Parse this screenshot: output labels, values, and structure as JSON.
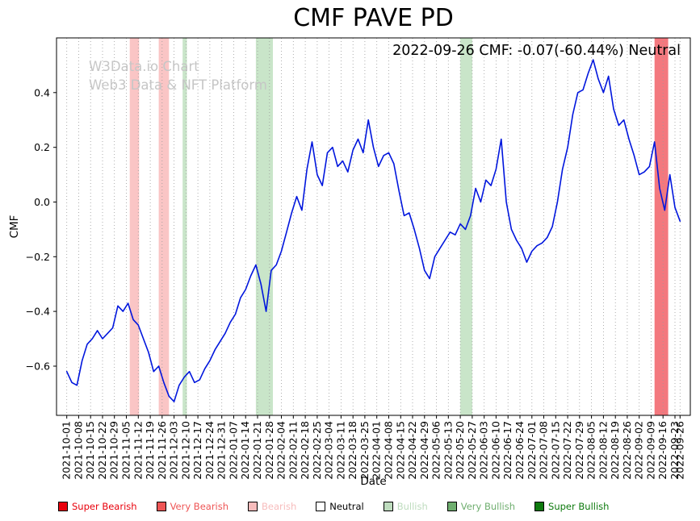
{
  "annotation": {
    "text": "2022-09-26 CMF: -0.07(-60.44%) Neutral"
  },
  "watermark": {
    "line1": "W3Data.io Chart",
    "line2": "Web3 Data & NFT Platform"
  },
  "legend": {
    "items": [
      {
        "label": "Super Bearish",
        "color": "#e8000b",
        "text_color": "#e8000b"
      },
      {
        "label": "Very Bearish",
        "color": "#ee5555",
        "text_color": "#ee5555"
      },
      {
        "label": "Bearish",
        "color": "#f7bcbc",
        "text_color": "#f7bcbc"
      },
      {
        "label": "Neutral",
        "color": "#ffffff",
        "text_color": "#000000"
      },
      {
        "label": "Bullish",
        "color": "#bedcbe",
        "text_color": "#bedcbe"
      },
      {
        "label": "Very Bullish",
        "color": "#6fae6f",
        "text_color": "#6fae6f"
      },
      {
        "label": "Super Bullish",
        "color": "#0e7a0e",
        "text_color": "#0e7a0e"
      }
    ]
  },
  "chart_data": {
    "type": "line",
    "title": "CMF PAVE PD",
    "xlabel": "Date",
    "ylabel": "CMF",
    "x_unit": "days since 2021-10-01",
    "xlim": [
      -6,
      366
    ],
    "ylim": [
      -0.78,
      0.6
    ],
    "grid": "vertical-dotted",
    "grid_color": "#9a9a9a",
    "yticks": [
      0.4,
      0.2,
      0.0,
      -0.2,
      -0.4,
      -0.6
    ],
    "tick_days": [
      0,
      7,
      14,
      21,
      28,
      35,
      42,
      49,
      56,
      63,
      70,
      77,
      84,
      91,
      98,
      105,
      112,
      119,
      126,
      133,
      140,
      147,
      154,
      161,
      168,
      175,
      182,
      189,
      196,
      203,
      210,
      217,
      224,
      231,
      238,
      245,
      252,
      259,
      266,
      273,
      280,
      287,
      294,
      301,
      308,
      315,
      322,
      329,
      336,
      343,
      350,
      357,
      360
    ],
    "tick_labels": [
      "2021-10-01",
      "2021-10-08",
      "2021-10-15",
      "2021-10-22",
      "2021-10-29",
      "2021-11-05",
      "2021-11-12",
      "2021-11-19",
      "2021-11-26",
      "2021-12-03",
      "2021-12-10",
      "2021-12-17",
      "2021-12-24",
      "2021-12-31",
      "2022-01-07",
      "2022-01-14",
      "2022-01-21",
      "2022-01-28",
      "2022-02-04",
      "2022-02-11",
      "2022-02-18",
      "2022-02-25",
      "2022-03-04",
      "2022-03-11",
      "2022-03-18",
      "2022-03-25",
      "2022-04-01",
      "2022-04-08",
      "2022-04-15",
      "2022-04-22",
      "2022-04-29",
      "2022-05-06",
      "2022-05-13",
      "2022-05-20",
      "2022-05-27",
      "2022-06-03",
      "2022-06-10",
      "2022-06-17",
      "2022-06-24",
      "2022-07-01",
      "2022-07-08",
      "2022-07-15",
      "2022-07-22",
      "2022-07-29",
      "2022-08-05",
      "2022-08-12",
      "2022-08-19",
      "2022-08-26",
      "2022-09-02",
      "2022-09-09",
      "2022-09-16",
      "2022-09-23",
      "2022-09-26"
    ],
    "series": [
      {
        "name": "CMF",
        "color": "#0016dd",
        "x0": 0,
        "dx": 3,
        "y": [
          -0.62,
          -0.66,
          -0.67,
          -0.58,
          -0.52,
          -0.5,
          -0.47,
          -0.5,
          -0.48,
          -0.46,
          -0.38,
          -0.4,
          -0.37,
          -0.43,
          -0.45,
          -0.5,
          -0.55,
          -0.62,
          -0.6,
          -0.66,
          -0.71,
          -0.73,
          -0.67,
          -0.64,
          -0.62,
          -0.66,
          -0.65,
          -0.61,
          -0.58,
          -0.54,
          -0.51,
          -0.48,
          -0.44,
          -0.41,
          -0.35,
          -0.32,
          -0.27,
          -0.23,
          -0.3,
          -0.4,
          -0.25,
          -0.23,
          -0.18,
          -0.11,
          -0.04,
          0.02,
          -0.03,
          0.12,
          0.22,
          0.1,
          0.06,
          0.18,
          0.2,
          0.13,
          0.15,
          0.11,
          0.19,
          0.23,
          0.18,
          0.3,
          0.2,
          0.13,
          0.17,
          0.18,
          0.14,
          0.04,
          -0.05,
          -0.04,
          -0.1,
          -0.17,
          -0.25,
          -0.28,
          -0.2,
          -0.17,
          -0.14,
          -0.11,
          -0.12,
          -0.08,
          -0.1,
          -0.05,
          0.05,
          0.0,
          0.08,
          0.06,
          0.12,
          0.23,
          0.0,
          -0.1,
          -0.14,
          -0.17,
          -0.22,
          -0.18,
          -0.16,
          -0.15,
          -0.13,
          -0.09,
          0.0,
          0.12,
          0.2,
          0.32,
          0.4,
          0.41,
          0.47,
          0.52,
          0.45,
          0.4,
          0.46,
          0.34,
          0.28,
          0.3,
          0.23,
          0.17,
          0.1,
          0.11,
          0.13,
          0.22,
          0.05,
          -0.03,
          0.1,
          -0.02,
          -0.07
        ]
      }
    ],
    "bands": [
      {
        "from": 37,
        "to": 42.5,
        "level": "bearish",
        "color": "rgba(244,126,126,0.45)"
      },
      {
        "from": 54,
        "to": 60,
        "level": "bearish",
        "color": "rgba(244,126,126,0.45)"
      },
      {
        "from": 68,
        "to": 70.5,
        "level": "bullish",
        "color": "rgba(120,190,120,0.40)"
      },
      {
        "from": 111,
        "to": 121,
        "level": "bullish",
        "color": "rgba(120,190,120,0.40)"
      },
      {
        "from": 231,
        "to": 238,
        "level": "bullish",
        "color": "rgba(120,190,120,0.40)"
      },
      {
        "from": 345,
        "to": 353,
        "level": "very-bearish",
        "color": "rgba(235,30,40,0.60)"
      }
    ]
  }
}
